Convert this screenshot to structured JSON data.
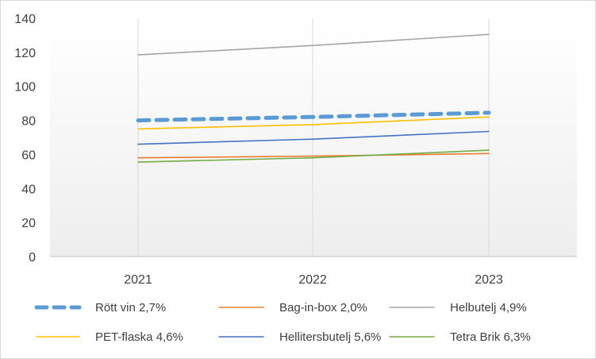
{
  "chart_data": {
    "type": "line",
    "title": "",
    "xlabel": "",
    "ylabel": "",
    "categories": [
      "2021",
      "2022",
      "2023"
    ],
    "ylim": [
      0,
      140
    ],
    "yticks": [
      0,
      20,
      40,
      60,
      80,
      100,
      120,
      140
    ],
    "grid": "vertical lines at categories",
    "plot_background": "white fading to light gray",
    "legend_position": "bottom",
    "series": [
      {
        "name": "Rött vin 2,7%",
        "values": [
          80,
          82,
          84.5
        ],
        "color": "#5b9bd5",
        "style": "dashed-thick"
      },
      {
        "name": "Bag-in-box 2,0%",
        "values": [
          58,
          59,
          60.5
        ],
        "color": "#ed7d31",
        "style": "solid"
      },
      {
        "name": "Helbutelj 4,9%",
        "values": [
          118.5,
          124,
          130.5
        ],
        "color": "#a5a5a5",
        "style": "solid"
      },
      {
        "name": "PET-flaska 4,6%",
        "values": [
          75,
          77.5,
          82
        ],
        "color": "#ffc000",
        "style": "solid"
      },
      {
        "name": "Hellitersbutelj 5,6%",
        "values": [
          66,
          69,
          73.5
        ],
        "color": "#4472c4",
        "style": "solid"
      },
      {
        "name": "Tetra Brik 6,3%",
        "values": [
          55.5,
          58,
          62.5
        ],
        "color": "#70ad47",
        "style": "solid"
      }
    ]
  }
}
